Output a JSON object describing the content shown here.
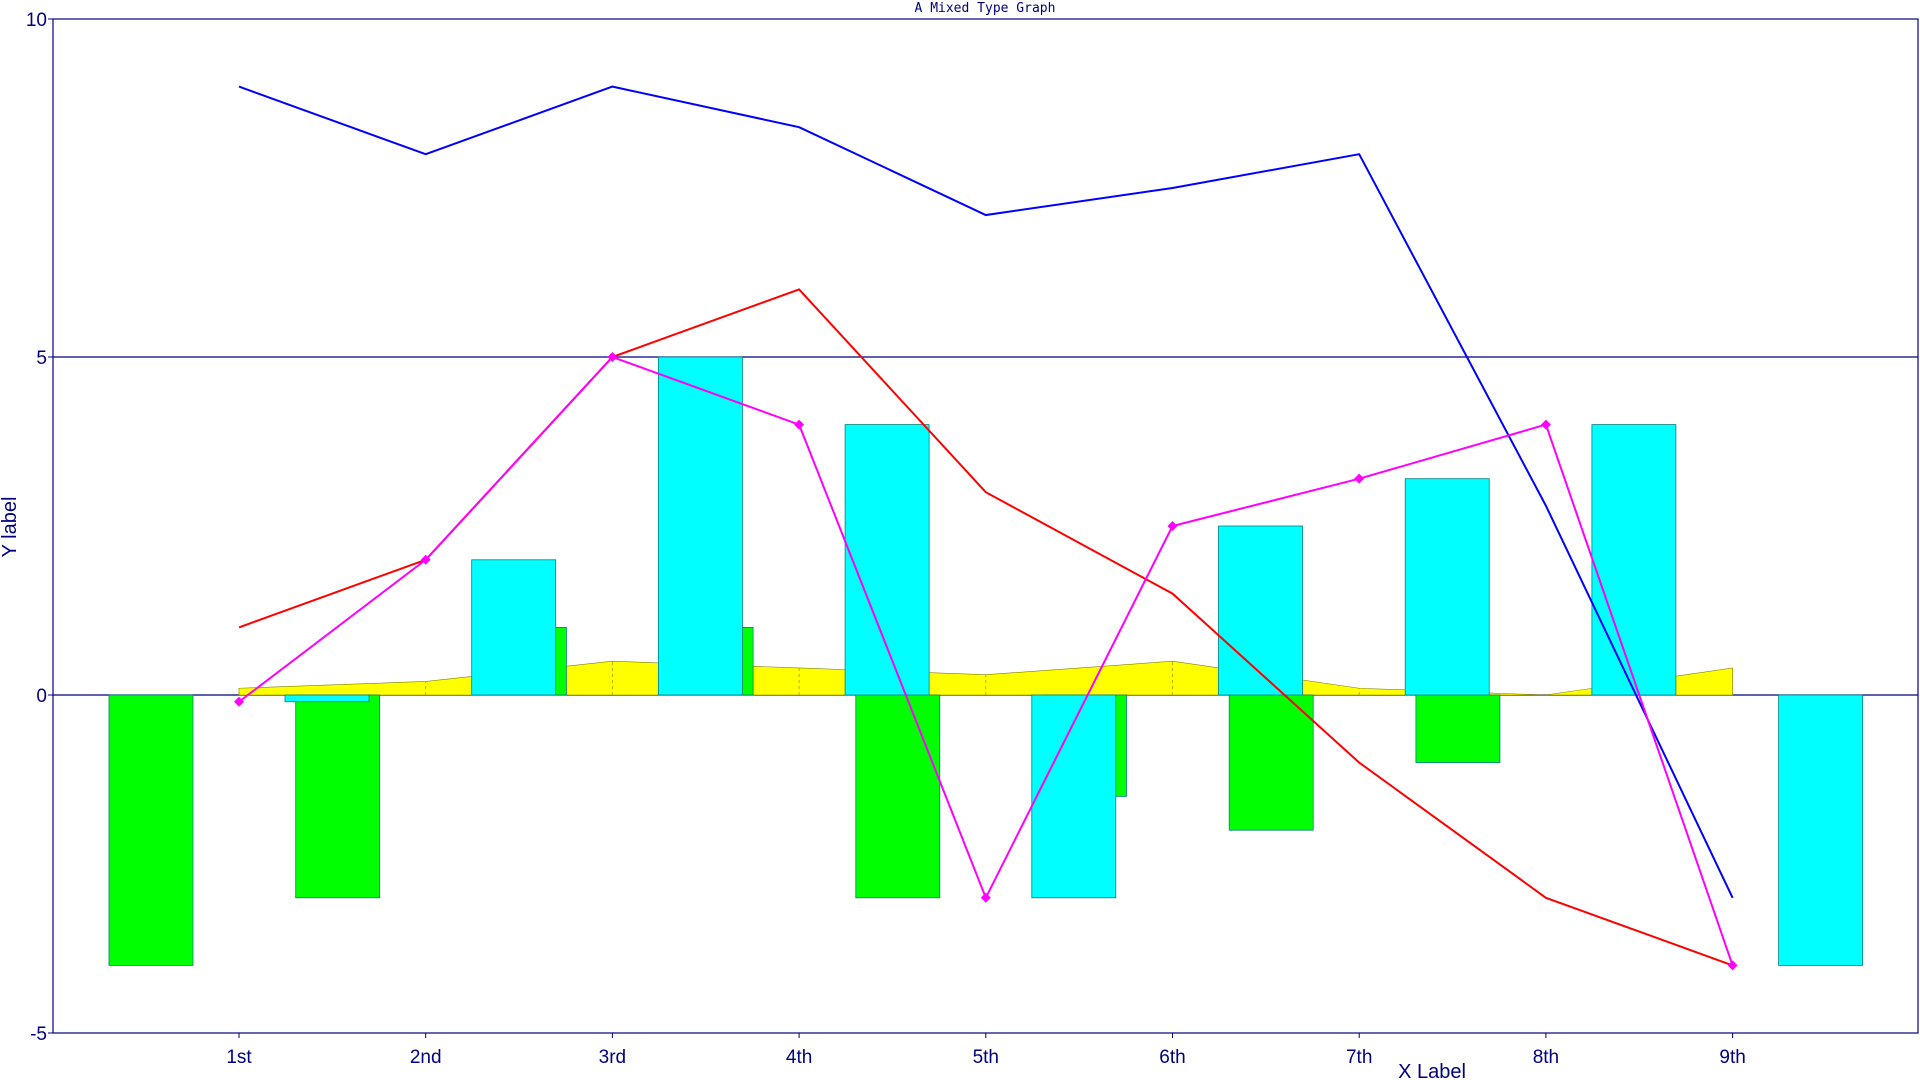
{
  "chart_data": {
    "type": "bar",
    "title": "A Mixed Type Graph",
    "xlabel": "X Label",
    "ylabel": "Y label",
    "ylim": [
      -5,
      10
    ],
    "yticks": [
      -5,
      0,
      5,
      10
    ],
    "ytick_labels": [
      "-5",
      "0",
      "5",
      "10"
    ],
    "grid": "horizontal at 5",
    "categories": [
      "1st",
      "2nd",
      "3rd",
      "4th",
      "5th",
      "6th",
      "7th",
      "8th",
      "9th"
    ],
    "series": [
      {
        "kind": "area",
        "color": "#ffff00",
        "values": [
          0.1,
          0.2,
          0.5,
          0.4,
          0.3,
          0.5,
          0.1,
          0.0,
          0.4
        ]
      },
      {
        "kind": "bar",
        "color": "#00ff00",
        "values": [
          -4,
          -3,
          1,
          1,
          -3,
          -1.5,
          -2,
          -1,
          null
        ]
      },
      {
        "kind": "bar",
        "color": "#00ffff",
        "values": [
          -0.1,
          2,
          5,
          4,
          -3,
          2.5,
          3.2,
          4,
          -4
        ]
      },
      {
        "kind": "line",
        "color": "#0000ff",
        "values": [
          9,
          8,
          9,
          8.4,
          7.1,
          7.5,
          8,
          2.8,
          -3
        ]
      },
      {
        "kind": "line",
        "color": "#ff0000",
        "values": [
          1,
          2,
          5,
          6,
          3,
          1.5,
          -1,
          -3,
          -4
        ]
      },
      {
        "kind": "line-markers",
        "color": "#ff00ff",
        "values": [
          -0.1,
          2,
          5,
          4,
          -3,
          2.5,
          3.2,
          4,
          -4
        ]
      }
    ]
  }
}
